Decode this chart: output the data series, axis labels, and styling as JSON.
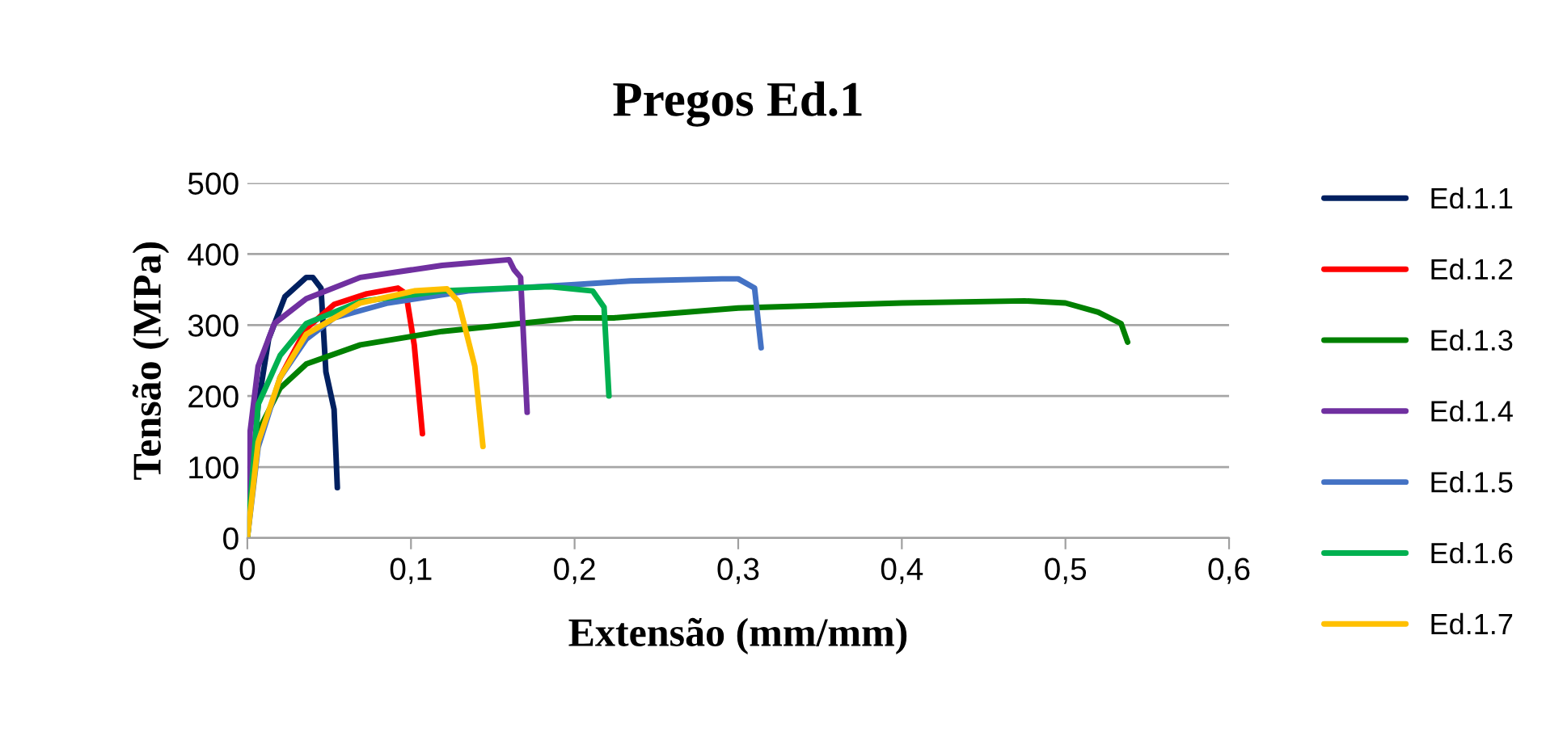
{
  "chart_data": {
    "type": "line",
    "title": "Pregos Ed.1",
    "xlabel": "Extensão (mm/mm)",
    "ylabel": "Tensão (MPa)",
    "xlim": [
      0,
      0.6
    ],
    "ylim": [
      0,
      500
    ],
    "xticks": [
      0,
      {
        "value": 0.1,
        "label": "0,1"
      },
      {
        "value": 0.2,
        "label": "0,2"
      },
      {
        "value": 0.3,
        "label": "0,3"
      },
      {
        "value": 0.4,
        "label": "0,4"
      },
      {
        "value": 0.5,
        "label": "0,5"
      },
      {
        "value": 0.6,
        "label": "0,6"
      }
    ],
    "yticks": [
      0,
      100,
      200,
      300,
      400,
      500
    ],
    "grid": "y",
    "legend": "right",
    "marker": "none",
    "line_style": "solid",
    "series": [
      {
        "name": "Ed.1.1",
        "color": "#002060",
        "x": [
          0,
          0.0066,
          0.013,
          0.023,
          0.036,
          0.04,
          0.045,
          0.048,
          0.053,
          0.055
        ],
        "values": [
          0,
          188,
          280,
          340,
          367,
          367,
          352,
          234,
          181,
          71
        ]
      },
      {
        "name": "Ed.1.2",
        "color": "#ff0000",
        "x": [
          0.02,
          0.036,
          0.053,
          0.073,
          0.092,
          0.097,
          0.102,
          0.107
        ],
        "values": [
          226,
          295,
          329,
          344,
          352,
          344,
          272,
          147
        ]
      },
      {
        "name": "Ed.1.3",
        "color": "#008000",
        "x": [
          0,
          0.0066,
          0.02,
          0.036,
          0.069,
          0.119,
          0.2,
          0.224,
          0.3,
          0.4,
          0.475,
          0.5,
          0.52,
          0.534,
          0.538
        ],
        "values": [
          0,
          150,
          211,
          245,
          272,
          291,
          310,
          310,
          324,
          331,
          334,
          331,
          318,
          302,
          276
        ]
      },
      {
        "name": "Ed.1.4",
        "color": "#7030a0",
        "x": [
          0,
          0.0017,
          0.0066,
          0.0165,
          0.036,
          0.069,
          0.119,
          0.16,
          0.163,
          0.167,
          0.171
        ],
        "values": [
          0,
          150,
          242,
          302,
          337,
          367,
          384,
          392,
          378,
          367,
          177
        ]
      },
      {
        "name": "Ed.1.5",
        "color": "#4472c4",
        "x": [
          0,
          0.0066,
          0.02,
          0.036,
          0.053,
          0.086,
          0.135,
          0.2,
          0.234,
          0.29,
          0.3,
          0.31,
          0.314
        ],
        "values": [
          0,
          128,
          226,
          280,
          310,
          331,
          348,
          357,
          362,
          365,
          365,
          352,
          268
        ]
      },
      {
        "name": "Ed.1.6",
        "color": "#00b050",
        "x": [
          0,
          0.0066,
          0.02,
          0.036,
          0.069,
          0.119,
          0.185,
          0.211,
          0.218,
          0.221
        ],
        "values": [
          0,
          188,
          257,
          302,
          333,
          348,
          354,
          348,
          325,
          200
        ]
      },
      {
        "name": "Ed.1.7",
        "color": "#ffc000",
        "x": [
          0,
          0.0066,
          0.02,
          0.036,
          0.069,
          0.102,
          0.122,
          0.129,
          0.139,
          0.144
        ],
        "values": [
          0,
          135,
          226,
          287,
          331,
          348,
          351,
          333,
          242,
          129
        ]
      }
    ]
  }
}
